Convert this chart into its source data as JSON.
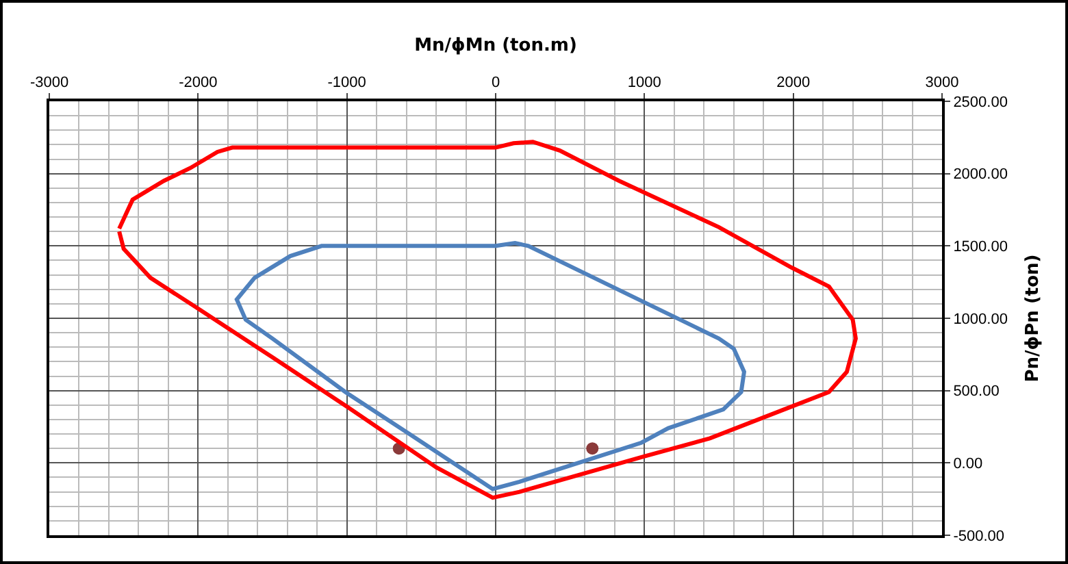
{
  "chart_data": {
    "type": "line",
    "xlabel": "Mn/ϕMn (ton.m)",
    "ylabel": "Pn/ϕPn (ton)",
    "xlim": [
      -3000,
      3000
    ],
    "xticks": [
      -3000,
      -2000,
      -1000,
      0,
      1000,
      2000,
      3000
    ],
    "ylim": [
      -500,
      2500
    ],
    "yticks": [
      {
        "value": -500,
        "label": "-500.00"
      },
      {
        "value": 0,
        "label": "0.00"
      },
      {
        "value": 500,
        "label": "500.00"
      },
      {
        "value": 1000,
        "label": "1000.00"
      },
      {
        "value": 1500,
        "label": "1500.00"
      },
      {
        "value": 2000,
        "label": "2000.00"
      },
      {
        "value": 2500,
        "label": "2500.00"
      }
    ],
    "grid": true,
    "marker": "none",
    "line_style": "solid",
    "series": [
      {
        "color": "#ff0000",
        "x": [
          -2530,
          -2440,
          -2230,
          -2050,
          -1870,
          -1770,
          -1000,
          0,
          120,
          250,
          430,
          830,
          1500,
          1990,
          2240,
          2400,
          2420,
          2360,
          2240,
          1990,
          1440,
          980,
          160,
          -20,
          -400,
          -1000,
          -1500,
          -2020,
          -2320,
          -2500,
          -2530
        ],
        "values": [
          1620,
          1820,
          1950,
          2040,
          2150,
          2180,
          2180,
          2180,
          2210,
          2220,
          2160,
          1950,
          1630,
          1350,
          1220,
          990,
          860,
          630,
          490,
          390,
          170,
          40,
          -200,
          -240,
          -30,
          390,
          730,
          1080,
          1280,
          1480,
          1600
        ]
      },
      {
        "type": "scatter",
        "marker": "circle",
        "color": "#8b3a3a",
        "x": [
          -650,
          650
        ],
        "values": [
          100,
          100
        ]
      }
    ]
  }
}
